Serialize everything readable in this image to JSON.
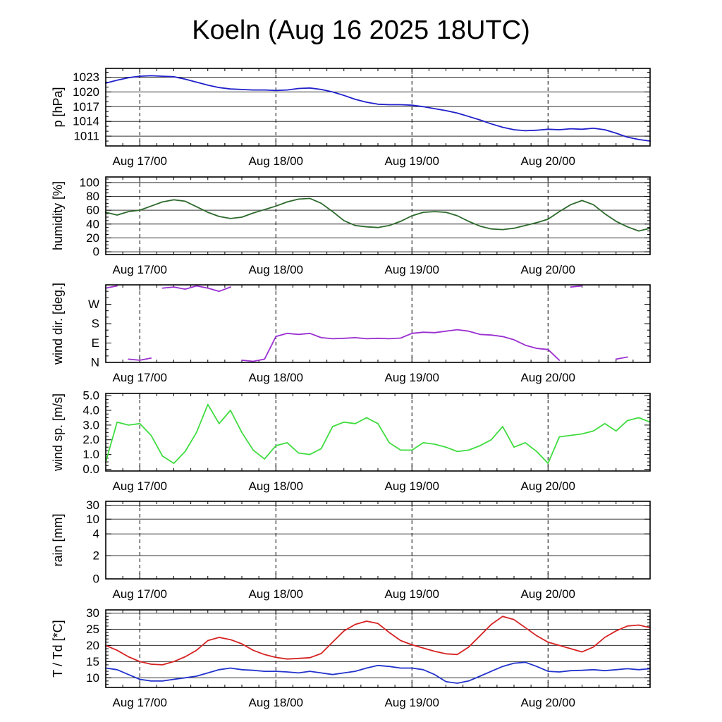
{
  "title": "Koeln (Aug 16 2025 18UTC)",
  "x_axis": {
    "hour_range": [
      0,
      96
    ],
    "tick_hours": [
      6,
      30,
      54,
      78
    ],
    "tick_labels": [
      "Aug 17/00",
      "Aug 18/00",
      "Aug 19/00",
      "Aug 20/00"
    ],
    "minor_tick_hours": 3
  },
  "x_hours": [
    0,
    2,
    4,
    6,
    8,
    10,
    12,
    14,
    16,
    18,
    20,
    22,
    24,
    26,
    28,
    30,
    32,
    34,
    36,
    38,
    40,
    42,
    44,
    46,
    48,
    50,
    52,
    54,
    56,
    58,
    60,
    62,
    64,
    66,
    68,
    70,
    72,
    74,
    76,
    78,
    80,
    82,
    84,
    86,
    88,
    90,
    92,
    94,
    96
  ],
  "chart_data": [
    {
      "type": "line",
      "key": "pressure",
      "ylabel": "p [hPa]",
      "grid": true,
      "ylim": [
        1009,
        1024.8
      ],
      "yticks": [
        1011,
        1014,
        1017,
        1020,
        1023
      ],
      "ytick_labels": [
        "1011",
        "1014",
        "1017",
        "1020",
        "1023"
      ],
      "yminor": 1,
      "wrap": false,
      "series": [
        {
          "name": "pressure",
          "color": "#2020cc",
          "values": [
            1021.8,
            1022.4,
            1022.9,
            1023.2,
            1023.3,
            1023.2,
            1023.1,
            1022.6,
            1022.0,
            1021.4,
            1020.9,
            1020.6,
            1020.5,
            1020.4,
            1020.4,
            1020.3,
            1020.4,
            1020.7,
            1020.8,
            1020.5,
            1020.0,
            1019.3,
            1018.5,
            1017.9,
            1017.5,
            1017.4,
            1017.4,
            1017.3,
            1017.0,
            1016.6,
            1016.2,
            1015.7,
            1015.0,
            1014.3,
            1013.5,
            1012.8,
            1012.3,
            1012.1,
            1012.2,
            1012.4,
            1012.3,
            1012.5,
            1012.4,
            1012.6,
            1012.3,
            1011.6,
            1010.8,
            1010.3,
            1010.0
          ]
        }
      ]
    },
    {
      "type": "line",
      "key": "humidity",
      "ylabel": "humidity [%]",
      "grid": true,
      "ylim": [
        -4,
        108
      ],
      "yticks": [
        0,
        20,
        40,
        60,
        80,
        100
      ],
      "ytick_labels": [
        "0",
        "20",
        "40",
        "60",
        "80",
        "100"
      ],
      "yminor": 5,
      "wrap": false,
      "series": [
        {
          "name": "humidity",
          "color": "#2d6a2d",
          "values": [
            57,
            53,
            58,
            60,
            66,
            72,
            75,
            73,
            65,
            57,
            51,
            48,
            50,
            56,
            61,
            66,
            72,
            76,
            77,
            70,
            58,
            45,
            38,
            36,
            35,
            38,
            44,
            52,
            57,
            58,
            57,
            52,
            44,
            37,
            33,
            32,
            34,
            38,
            42,
            47,
            58,
            68,
            74,
            68,
            55,
            44,
            36,
            30,
            34
          ]
        }
      ]
    },
    {
      "type": "line",
      "key": "wind_dir",
      "ylabel": "wind dir. [deg.]",
      "grid": false,
      "ylim": [
        0,
        360
      ],
      "yticks": [
        0,
        90,
        180,
        270
      ],
      "ytick_labels": [
        "N",
        "E",
        "S",
        "W"
      ],
      "yminor": 30,
      "wrap": true,
      "series": [
        {
          "name": "wind_direction",
          "color": "#9b30d0",
          "values": [
            345,
            355,
            15,
            10,
            20,
            345,
            350,
            340,
            355,
            345,
            330,
            350,
            10,
            5,
            15,
            120,
            135,
            130,
            135,
            115,
            110,
            112,
            115,
            110,
            112,
            110,
            113,
            135,
            140,
            138,
            145,
            152,
            145,
            130,
            127,
            120,
            105,
            80,
            65,
            60,
            10,
            350,
            355,
            20,
            350,
            15,
            25,
            350,
            40
          ]
        }
      ]
    },
    {
      "type": "line",
      "key": "wind_speed",
      "ylabel": "wind sp. [m/s]",
      "grid": false,
      "ylim": [
        -0.12,
        5.15
      ],
      "yticks": [
        0,
        1,
        2,
        3,
        4,
        5
      ],
      "ytick_labels": [
        "0.0",
        "1.0",
        "2.0",
        "3.0",
        "4.0",
        "5.0"
      ],
      "yminor": 0.25,
      "wrap": false,
      "series": [
        {
          "name": "wind_speed",
          "color": "#3fdc3f",
          "values": [
            0.5,
            3.2,
            3.0,
            3.1,
            2.3,
            0.9,
            0.4,
            1.2,
            2.5,
            4.4,
            3.1,
            4.0,
            2.5,
            1.3,
            0.7,
            1.6,
            1.8,
            1.1,
            1.0,
            1.4,
            2.9,
            3.2,
            3.1,
            3.5,
            3.1,
            1.8,
            1.3,
            1.3,
            1.8,
            1.7,
            1.5,
            1.2,
            1.3,
            1.6,
            2.0,
            2.9,
            1.5,
            1.8,
            1.2,
            0.4,
            2.2,
            2.3,
            2.4,
            2.6,
            3.1,
            2.6,
            3.3,
            3.5,
            3.2
          ]
        }
      ]
    },
    {
      "type": "line",
      "key": "rain",
      "ylabel": "rain [mm]",
      "grid": true,
      "scale": "rain",
      "ylim": [
        0,
        30
      ],
      "yticks": [
        0,
        2,
        4,
        10,
        30
      ],
      "ytick_labels": [
        "0",
        "2",
        "4",
        "10",
        "30"
      ],
      "yminor": 0,
      "wrap": false,
      "series": []
    },
    {
      "type": "line",
      "key": "temperature",
      "ylabel": "T / Td [*C]",
      "grid": true,
      "ylim": [
        7,
        31
      ],
      "yticks": [
        10,
        15,
        20,
        25,
        30
      ],
      "ytick_labels": [
        "10",
        "15",
        "20",
        "25",
        "30"
      ],
      "yminor": 1,
      "wrap": false,
      "series": [
        {
          "name": "temperature",
          "color": "#d62222",
          "values": [
            20.0,
            18.5,
            16.5,
            15.0,
            14.2,
            14.0,
            15.0,
            16.5,
            18.5,
            21.5,
            22.5,
            21.8,
            20.5,
            18.5,
            17.2,
            16.3,
            15.8,
            16.0,
            16.2,
            17.5,
            21.0,
            24.5,
            26.5,
            27.5,
            26.8,
            24.0,
            21.5,
            20.2,
            19.2,
            18.2,
            17.4,
            17.2,
            19.5,
            23.0,
            26.5,
            29.0,
            28.0,
            25.5,
            23.0,
            21.0,
            20.0,
            19.0,
            18.0,
            19.5,
            22.5,
            24.5,
            26.0,
            26.3,
            25.5
          ]
        },
        {
          "name": "dew_point",
          "color": "#2233cc",
          "values": [
            13.0,
            12.5,
            11.0,
            9.5,
            9.0,
            9.0,
            9.5,
            10.0,
            10.5,
            11.5,
            12.5,
            13.0,
            12.5,
            12.3,
            12.0,
            12.0,
            11.8,
            11.5,
            12.0,
            11.5,
            11.0,
            11.5,
            12.0,
            13.0,
            13.8,
            13.5,
            13.0,
            13.0,
            12.5,
            11.0,
            8.8,
            8.3,
            9.0,
            10.5,
            12.0,
            13.5,
            14.5,
            14.8,
            13.5,
            12.0,
            11.8,
            12.2,
            12.3,
            12.5,
            12.2,
            12.5,
            12.8,
            12.5,
            12.8
          ]
        }
      ]
    }
  ]
}
